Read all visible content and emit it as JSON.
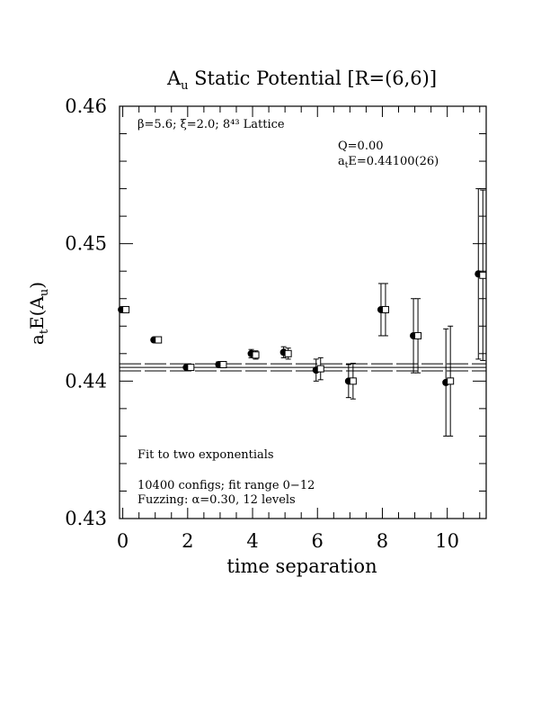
{
  "chart_data": {
    "type": "scatter",
    "title_main": "A",
    "title_sub": "u",
    "title_rest": " Static Potential [R=(6,6)]",
    "xlabel": "time separation",
    "ylabel_main": "a",
    "ylabel_sub1": "t",
    "ylabel_mid": "E(A",
    "ylabel_sub2": "u",
    "ylabel_end": ")",
    "xlim": [
      -0.1,
      11.2
    ],
    "ylim": [
      0.43,
      0.46
    ],
    "x_ticks": [
      0,
      2,
      4,
      6,
      8,
      10
    ],
    "x_tick_labels": [
      "0",
      "2",
      "4",
      "6",
      "8",
      "10"
    ],
    "y_ticks": [
      0.43,
      0.44,
      0.45,
      0.46
    ],
    "y_tick_labels": [
      "0.43",
      "0.44",
      "0.45",
      "0.46"
    ],
    "annotations": {
      "lattice": "β=5.6; ξ=2.0; 8⁴³ Lattice",
      "q_value": "Q=0.00",
      "energy_prefix": "a",
      "energy_sub": "t",
      "energy_value": "E=0.44100(26)",
      "fit": "Fit to two exponentials",
      "configs": "10400 configs; fit range 0−12",
      "fuzzing": "Fuzzing: α=0.30, 12 levels"
    },
    "fit_band": {
      "center": 0.441,
      "lower": 0.44074,
      "upper": 0.44126
    },
    "series": [
      {
        "marker": "filled-circle",
        "points": [
          {
            "x": 0,
            "y": 0.4452,
            "err": 0.0001
          },
          {
            "x": 1,
            "y": 0.443,
            "err": 0.0001
          },
          {
            "x": 2,
            "y": 0.441,
            "err": 0.0001
          },
          {
            "x": 3,
            "y": 0.4412,
            "err": 0.0002
          },
          {
            "x": 4,
            "y": 0.442,
            "err": 0.0003
          },
          {
            "x": 5,
            "y": 0.4421,
            "err": 0.0004
          },
          {
            "x": 6,
            "y": 0.4408,
            "err": 0.0008
          },
          {
            "x": 7,
            "y": 0.44,
            "err": 0.0012
          },
          {
            "x": 8,
            "y": 0.4452,
            "err": 0.0019
          },
          {
            "x": 9,
            "y": 0.4433,
            "err": 0.0027
          },
          {
            "x": 10,
            "y": 0.4399,
            "err": 0.0039
          },
          {
            "x": 11,
            "y": 0.4478,
            "err": 0.0062
          }
        ]
      },
      {
        "marker": "open-square",
        "points": [
          {
            "x": 0,
            "y": 0.4452,
            "err": 0.0001
          },
          {
            "x": 1,
            "y": 0.443,
            "err": 0.0001
          },
          {
            "x": 2,
            "y": 0.441,
            "err": 0.0001
          },
          {
            "x": 3,
            "y": 0.4412,
            "err": 0.0002
          },
          {
            "x": 4,
            "y": 0.4419,
            "err": 0.0003
          },
          {
            "x": 5,
            "y": 0.442,
            "err": 0.0004
          },
          {
            "x": 6,
            "y": 0.4409,
            "err": 0.0008
          },
          {
            "x": 7,
            "y": 0.44,
            "err": 0.0013
          },
          {
            "x": 8,
            "y": 0.4452,
            "err": 0.0019
          },
          {
            "x": 9,
            "y": 0.4433,
            "err": 0.0027
          },
          {
            "x": 10,
            "y": 0.44,
            "err": 0.004
          },
          {
            "x": 11,
            "y": 0.4477,
            "err": 0.0062
          }
        ]
      }
    ]
  }
}
